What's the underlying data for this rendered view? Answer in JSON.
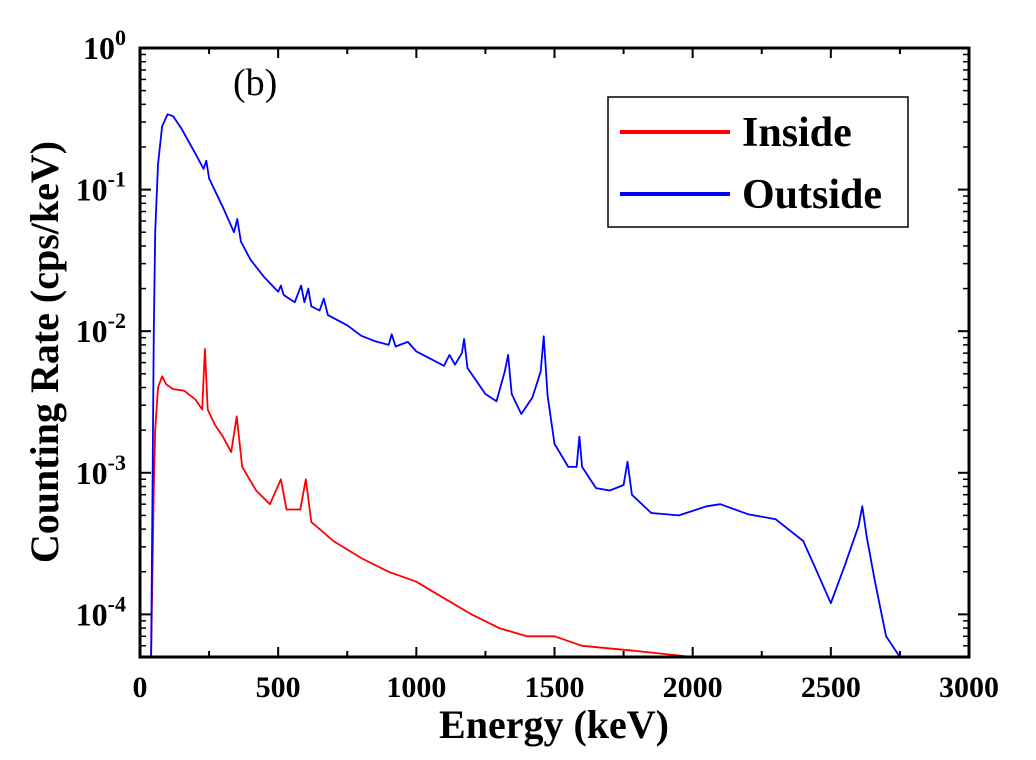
{
  "chart_data": {
    "type": "line",
    "panel_label": "(b)",
    "xlabel": "Energy (keV)",
    "ylabel": "Counting Rate (cps/keV)",
    "xlim": [
      0,
      3000
    ],
    "ylim": [
      5e-05,
      1
    ],
    "y_scale": "log",
    "x_ticks": [
      0,
      500,
      1000,
      1500,
      2000,
      2500,
      3000
    ],
    "x_tick_labels": [
      "0",
      "500",
      "1000",
      "1500",
      "2000",
      "2500",
      "3000"
    ],
    "y_ticks": [
      {
        "value": 1,
        "base": "10",
        "exp": "0"
      },
      {
        "value": 0.1,
        "base": "10",
        "exp": "-1"
      },
      {
        "value": 0.01,
        "base": "10",
        "exp": "-2"
      },
      {
        "value": 0.001,
        "base": "10",
        "exp": "-3"
      },
      {
        "value": 0.0001,
        "base": "10",
        "exp": "-4"
      }
    ],
    "legend_position": "top-right",
    "series": [
      {
        "name": "Inside",
        "color": "#ff0000",
        "points": [
          [
            40,
            5e-05
          ],
          [
            50,
            0.0008
          ],
          [
            55,
            0.002
          ],
          [
            65,
            0.004
          ],
          [
            80,
            0.0048
          ],
          [
            95,
            0.0042
          ],
          [
            120,
            0.0039
          ],
          [
            160,
            0.0038
          ],
          [
            200,
            0.0033
          ],
          [
            225,
            0.0028
          ],
          [
            235,
            0.0075
          ],
          [
            245,
            0.0028
          ],
          [
            270,
            0.0022
          ],
          [
            300,
            0.0018
          ],
          [
            330,
            0.0014
          ],
          [
            350,
            0.0025
          ],
          [
            370,
            0.0011
          ],
          [
            420,
            0.00075
          ],
          [
            470,
            0.0006
          ],
          [
            510,
            0.0009
          ],
          [
            530,
            0.00055
          ],
          [
            580,
            0.00055
          ],
          [
            600,
            0.0009
          ],
          [
            620,
            0.00045
          ],
          [
            700,
            0.00033
          ],
          [
            800,
            0.00025
          ],
          [
            900,
            0.0002
          ],
          [
            1000,
            0.00017
          ],
          [
            1100,
            0.00013
          ],
          [
            1200,
            0.0001
          ],
          [
            1300,
            8e-05
          ],
          [
            1400,
            7e-05
          ],
          [
            1500,
            7e-05
          ],
          [
            1600,
            6e-05
          ],
          [
            1800,
            5.5e-05
          ],
          [
            2000,
            5e-05
          ],
          [
            2300,
            5e-05
          ],
          [
            2600,
            5e-05
          ],
          [
            2700,
            5e-05
          ]
        ]
      },
      {
        "name": "Outside",
        "color": "#0000ff",
        "points": [
          [
            40,
            5e-05
          ],
          [
            45,
            0.0006
          ],
          [
            50,
            0.01
          ],
          [
            55,
            0.05
          ],
          [
            65,
            0.15
          ],
          [
            80,
            0.28
          ],
          [
            100,
            0.34
          ],
          [
            120,
            0.33
          ],
          [
            150,
            0.27
          ],
          [
            200,
            0.18
          ],
          [
            230,
            0.14
          ],
          [
            240,
            0.16
          ],
          [
            250,
            0.12
          ],
          [
            300,
            0.075
          ],
          [
            340,
            0.05
          ],
          [
            352,
            0.062
          ],
          [
            365,
            0.043
          ],
          [
            400,
            0.032
          ],
          [
            450,
            0.024
          ],
          [
            500,
            0.019
          ],
          [
            510,
            0.021
          ],
          [
            520,
            0.018
          ],
          [
            560,
            0.016
          ],
          [
            583,
            0.021
          ],
          [
            595,
            0.016
          ],
          [
            609,
            0.02
          ],
          [
            620,
            0.015
          ],
          [
            650,
            0.014
          ],
          [
            665,
            0.017
          ],
          [
            680,
            0.013
          ],
          [
            750,
            0.011
          ],
          [
            800,
            0.0093
          ],
          [
            850,
            0.0085
          ],
          [
            900,
            0.008
          ],
          [
            911,
            0.0095
          ],
          [
            925,
            0.0078
          ],
          [
            969,
            0.0084
          ],
          [
            1000,
            0.0072
          ],
          [
            1050,
            0.0064
          ],
          [
            1100,
            0.0057
          ],
          [
            1120,
            0.0068
          ],
          [
            1140,
            0.0058
          ],
          [
            1165,
            0.007
          ],
          [
            1173,
            0.0088
          ],
          [
            1185,
            0.0055
          ],
          [
            1250,
            0.0036
          ],
          [
            1290,
            0.0032
          ],
          [
            1320,
            0.0052
          ],
          [
            1332,
            0.0068
          ],
          [
            1345,
            0.0036
          ],
          [
            1380,
            0.0026
          ],
          [
            1420,
            0.0034
          ],
          [
            1450,
            0.0052
          ],
          [
            1461,
            0.0092
          ],
          [
            1475,
            0.0035
          ],
          [
            1500,
            0.0016
          ],
          [
            1550,
            0.0011
          ],
          [
            1580,
            0.0011
          ],
          [
            1590,
            0.0018
          ],
          [
            1600,
            0.0011
          ],
          [
            1650,
            0.00078
          ],
          [
            1700,
            0.00075
          ],
          [
            1750,
            0.00082
          ],
          [
            1764,
            0.0012
          ],
          [
            1780,
            0.0007
          ],
          [
            1850,
            0.00052
          ],
          [
            1950,
            0.0005
          ],
          [
            2050,
            0.00058
          ],
          [
            2100,
            0.0006
          ],
          [
            2200,
            0.00051
          ],
          [
            2300,
            0.00047
          ],
          [
            2400,
            0.00033
          ],
          [
            2450,
            0.0002
          ],
          [
            2500,
            0.00012
          ],
          [
            2550,
            0.00022
          ],
          [
            2600,
            0.00042
          ],
          [
            2614,
            0.00058
          ],
          [
            2630,
            0.00035
          ],
          [
            2660,
            0.00017
          ],
          [
            2700,
            7e-05
          ],
          [
            2750,
            5e-05
          ],
          [
            2800,
            5e-05
          ],
          [
            3000,
            5e-05
          ]
        ]
      }
    ]
  }
}
